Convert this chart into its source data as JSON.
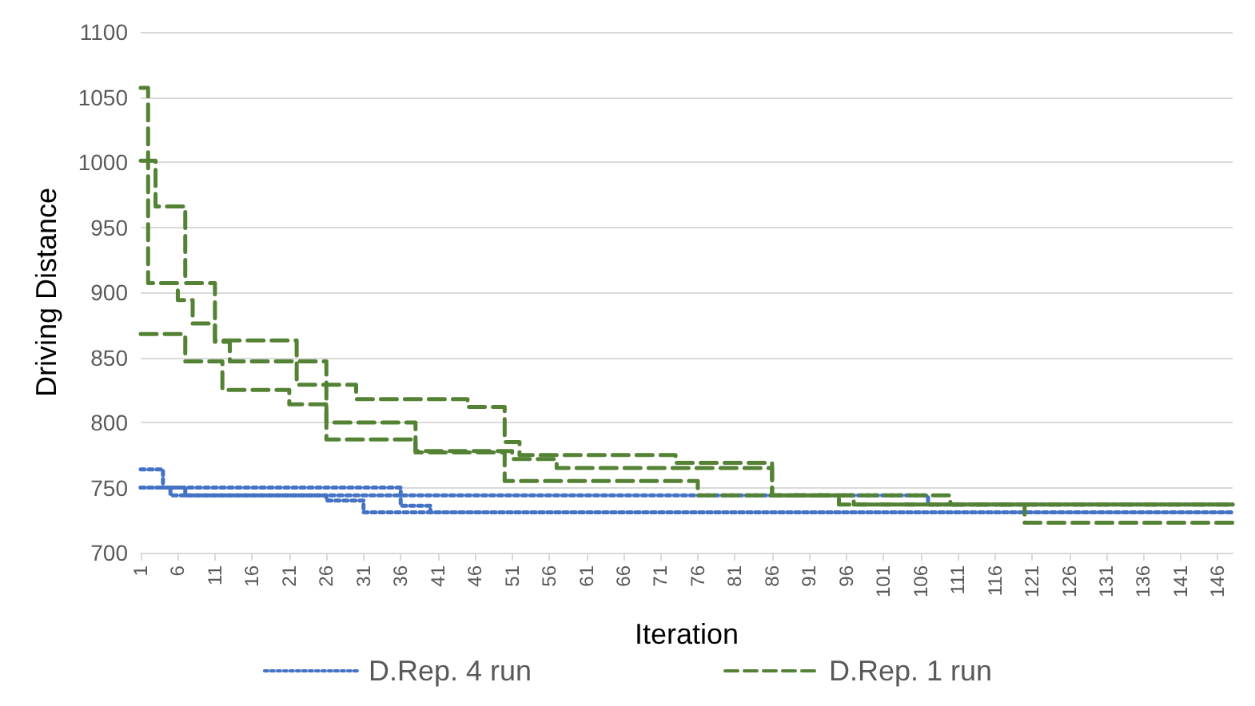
{
  "chart_data": {
    "type": "step",
    "xlabel": "Iteration",
    "ylabel": "Driving Distance",
    "xlim": [
      1,
      148
    ],
    "xticks": [
      1,
      6,
      11,
      16,
      21,
      26,
      31,
      36,
      41,
      46,
      51,
      56,
      61,
      66,
      71,
      76,
      81,
      86,
      91,
      96,
      101,
      106,
      111,
      116,
      121,
      126,
      131,
      136,
      141,
      146
    ],
    "ylim": [
      700,
      1100
    ],
    "yticks": [
      700,
      750,
      800,
      850,
      900,
      950,
      1000,
      1050,
      1100
    ],
    "grid": "y",
    "legend": "bottom",
    "marker": "none",
    "series": [
      {
        "name": "D.Rep. 4 run",
        "color": "#4472c4",
        "line_style": "dotted",
        "x": [
          1,
          4,
          7,
          107,
          148
        ],
        "values": [
          764,
          750,
          744,
          737,
          737
        ]
      },
      {
        "color": "#4472c4",
        "line_style": "dotted",
        "x": [
          1,
          36,
          40,
          148
        ],
        "values": [
          750,
          736,
          731,
          731
        ]
      },
      {
        "color": "#4472c4",
        "line_style": "dotted",
        "x": [
          1,
          5,
          26,
          31,
          148
        ],
        "values": [
          750,
          744,
          740,
          731,
          731
        ]
      },
      {
        "name": "D.Rep. 1 run",
        "color": "#548235",
        "line_style": "dashed",
        "x": [
          1,
          2,
          6,
          8,
          11,
          22,
          30,
          45,
          50,
          52,
          73,
          86,
          97,
          120,
          148
        ],
        "values": [
          1057,
          907,
          894,
          876,
          863,
          829,
          818,
          812,
          785,
          775,
          769,
          744,
          737,
          723,
          723
        ]
      },
      {
        "color": "#548235",
        "line_style": "dashed",
        "x": [
          1,
          3,
          7,
          11,
          13,
          26,
          38,
          51,
          57,
          86,
          110,
          148
        ],
        "values": [
          1001,
          966,
          907,
          862,
          847,
          800,
          778,
          772,
          765,
          744,
          737,
          737
        ]
      },
      {
        "color": "#548235",
        "line_style": "dashed",
        "x": [
          1,
          7,
          12,
          21,
          26,
          38,
          50,
          76,
          95,
          148
        ],
        "values": [
          868,
          847,
          825,
          814,
          787,
          777,
          755,
          744,
          737,
          737
        ]
      }
    ]
  }
}
